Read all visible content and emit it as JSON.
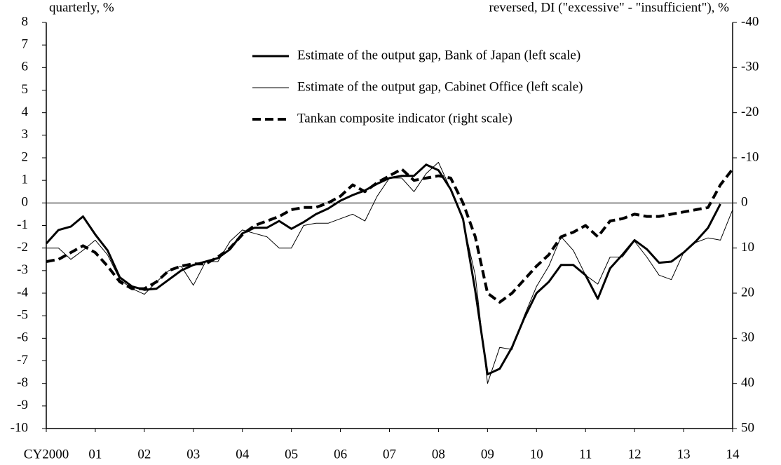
{
  "chart_data": {
    "type": "line",
    "y_label": "quarterly, %",
    "y2_label": "reversed, DI (\"excessive\" - \"insufficient\"), %",
    "x": [
      2000,
      2000.25,
      2000.5,
      2000.75,
      2001,
      2001.25,
      2001.5,
      2001.75,
      2002,
      2002.25,
      2002.5,
      2002.75,
      2003,
      2003.25,
      2003.5,
      2003.75,
      2004,
      2004.25,
      2004.5,
      2004.75,
      2005,
      2005.25,
      2005.5,
      2005.75,
      2006,
      2006.25,
      2006.5,
      2006.75,
      2007,
      2007.25,
      2007.5,
      2007.75,
      2008,
      2008.25,
      2008.5,
      2008.75,
      2009,
      2009.25,
      2009.5,
      2009.75,
      2010,
      2010.25,
      2010.5,
      2010.75,
      2011,
      2011.25,
      2011.5,
      2011.75,
      2012,
      2012.25,
      2012.5,
      2012.75,
      2013,
      2013.25,
      2013.5,
      2013.75,
      2014
    ],
    "series": [
      {
        "name": "Estimate of the output gap, Bank of Japan (left scale)",
        "color": "#000000",
        "line_width": 3,
        "dash": false,
        "values": [
          -1.8,
          -1.2,
          -1.05,
          -0.6,
          -1.4,
          -2.1,
          -3.3,
          -3.7,
          -3.85,
          -3.8,
          -3.4,
          -3.0,
          -2.75,
          -2.6,
          -2.45,
          -2.05,
          -1.35,
          -1.1,
          -1.1,
          -0.8,
          -1.15,
          -0.85,
          -0.5,
          -0.25,
          0.1,
          0.35,
          0.55,
          0.85,
          1.1,
          1.2,
          1.2,
          1.7,
          1.45,
          0.6,
          -0.7,
          -3.9,
          -7.6,
          -7.35,
          -6.4,
          -5.1,
          -4.0,
          -3.5,
          -2.75,
          -2.75,
          -3.2,
          -4.25,
          -2.9,
          -2.3,
          -1.65,
          -2.05,
          -2.65,
          -2.6,
          -2.2,
          -1.7,
          -1.1,
          -0.05,
          null
        ]
      },
      {
        "name": "Estimate of the output gap, Cabinet Office (left scale)",
        "color": "#000000",
        "line_width": 1,
        "dash": false,
        "values": [
          -2.0,
          -2.0,
          -2.5,
          -2.1,
          -1.65,
          -2.3,
          -3.4,
          -3.8,
          -4.05,
          -3.5,
          -3.0,
          -2.8,
          -3.65,
          -2.6,
          -2.6,
          -1.7,
          -1.2,
          -1.35,
          -1.5,
          -2.0,
          -2.0,
          -1.0,
          -0.9,
          -0.9,
          -0.7,
          -0.5,
          -0.8,
          0.3,
          1.1,
          1.1,
          0.5,
          1.3,
          1.8,
          0.6,
          -0.8,
          -3.2,
          -8.0,
          -6.4,
          -6.5,
          -5.0,
          -3.7,
          -2.8,
          -1.5,
          -2.1,
          -3.2,
          -3.6,
          -2.4,
          -2.4,
          -1.7,
          -2.4,
          -3.2,
          -3.4,
          -2.2,
          -1.75,
          -1.55,
          -1.65,
          -0.3
        ]
      },
      {
        "name": "Tankan composite indicator (right scale)",
        "color": "#000000",
        "line_width": 4,
        "dash": true,
        "axis": "y2",
        "values": [
          13,
          12.5,
          11,
          9.5,
          11,
          14,
          17.5,
          19,
          19,
          17.5,
          15,
          14,
          13.5,
          13.5,
          12,
          10,
          7,
          5,
          4,
          3,
          1.5,
          1,
          1,
          0,
          -1.5,
          -4,
          -2.5,
          -4.5,
          -6,
          -7.5,
          -5,
          -5.5,
          -6,
          -5.5,
          0,
          7.5,
          20,
          22,
          20,
          17,
          14,
          11.5,
          7.5,
          6.5,
          5,
          7.5,
          4,
          3.5,
          2.5,
          3,
          3,
          2.5,
          2,
          1.5,
          1,
          -4,
          -7.5
        ]
      }
    ],
    "xlim": [
      2000,
      2014
    ],
    "xticks": [
      {
        "value": 2000,
        "label": "CY2000"
      },
      {
        "value": 2001,
        "label": "01"
      },
      {
        "value": 2002,
        "label": "02"
      },
      {
        "value": 2003,
        "label": "03"
      },
      {
        "value": 2004,
        "label": "04"
      },
      {
        "value": 2005,
        "label": "05"
      },
      {
        "value": 2006,
        "label": "06"
      },
      {
        "value": 2007,
        "label": "07"
      },
      {
        "value": 2008,
        "label": "08"
      },
      {
        "value": 2009,
        "label": "09"
      },
      {
        "value": 2010,
        "label": "10"
      },
      {
        "value": 2011,
        "label": "11"
      },
      {
        "value": 2012,
        "label": "12"
      },
      {
        "value": 2013,
        "label": "13"
      },
      {
        "value": 2014,
        "label": "14"
      }
    ],
    "ylim": [
      -10,
      8
    ],
    "yticks": [
      8,
      7,
      6,
      5,
      4,
      3,
      2,
      1,
      0,
      -1,
      -2,
      -3,
      -4,
      -5,
      -6,
      -7,
      -8,
      -9,
      -10
    ],
    "y2lim": [
      50,
      -40
    ],
    "y2ticks": [
      -40,
      -30,
      -20,
      -10,
      0,
      10,
      20,
      30,
      40,
      50
    ],
    "zero_line": true,
    "legend": "top"
  }
}
